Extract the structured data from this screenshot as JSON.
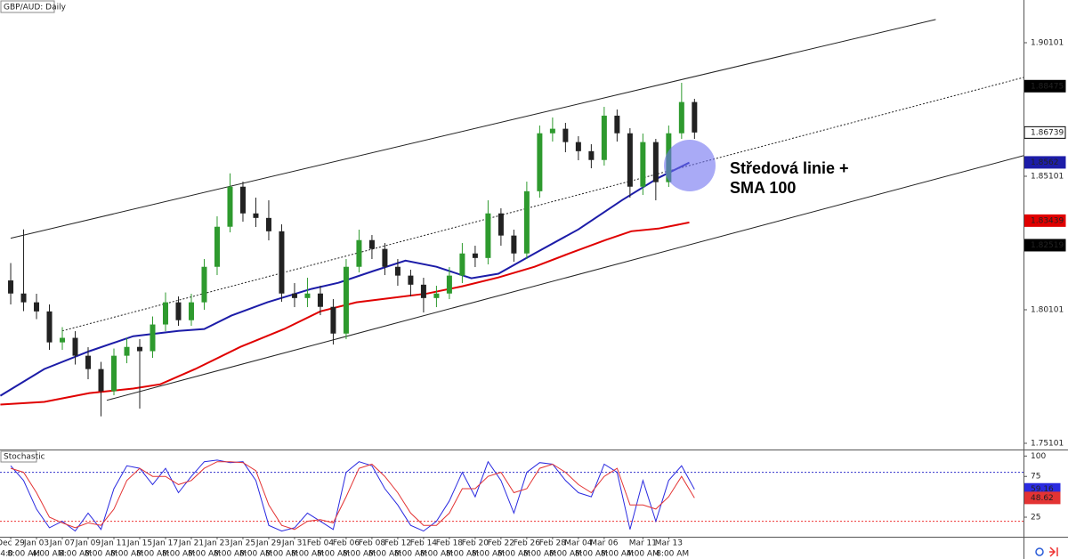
{
  "chart_data": [
    {
      "type": "candlestick",
      "title": "GBP/AUD: Daily",
      "xlim": [
        -0.83,
        78.5
      ],
      "ylim": [
        1.74868,
        1.91701
      ],
      "yticks": [
        1.75101,
        1.80101,
        1.85101,
        1.90101
      ],
      "xticks": [
        {
          "value": 0,
          "label": "Dec 29"
        },
        {
          "value": 2,
          "label": "Jan 03"
        },
        {
          "value": 4,
          "label": "Jan 07"
        },
        {
          "value": 6,
          "label": "Jan 09"
        },
        {
          "value": 8,
          "label": "Jan 11"
        },
        {
          "value": 10,
          "label": "Jan 15"
        },
        {
          "value": 12,
          "label": "Jan 17"
        },
        {
          "value": 14,
          "label": "Jan 21"
        },
        {
          "value": 16,
          "label": "Jan 23"
        },
        {
          "value": 18,
          "label": "Jan 25"
        },
        {
          "value": 20,
          "label": "Jan 29"
        },
        {
          "value": 22,
          "label": "Jan 31"
        },
        {
          "value": 24,
          "label": "Feb 04"
        },
        {
          "value": 26,
          "label": "Feb 06"
        },
        {
          "value": 28,
          "label": "Feb 08"
        },
        {
          "value": 30,
          "label": "Feb 12"
        },
        {
          "value": 32,
          "label": "Feb 14"
        },
        {
          "value": 34,
          "label": "Feb 18"
        },
        {
          "value": 36,
          "label": "Feb 20"
        },
        {
          "value": 38,
          "label": "Feb 22"
        },
        {
          "value": 40,
          "label": "Feb 26"
        },
        {
          "value": 42,
          "label": "Feb 28"
        },
        {
          "value": 44,
          "label": "Mar 04"
        },
        {
          "value": 46,
          "label": "Mar 06"
        },
        {
          "value": 49,
          "label": "Mar 11"
        },
        {
          "value": 51,
          "label": "Mar 13"
        }
      ],
      "time_ticks": [
        {
          "value": -0.8,
          "label": "4:0"
        },
        {
          "value": 1,
          "label": "8:00 AM"
        },
        {
          "value": 2.9,
          "label": "4:00 AM"
        },
        {
          "value": 5,
          "label": "8:00 AM"
        },
        {
          "value": 7,
          "label": "8:00 AM"
        },
        {
          "value": 9,
          "label": "8:00 AM"
        },
        {
          "value": 11,
          "label": "8:00 AM"
        },
        {
          "value": 13,
          "label": "8:00 AM"
        },
        {
          "value": 15,
          "label": "8:00 AM"
        },
        {
          "value": 17,
          "label": "8:00 AM"
        },
        {
          "value": 19,
          "label": "8:00 AM"
        },
        {
          "value": 21,
          "label": "8:00 AM"
        },
        {
          "value": 23,
          "label": "8:00 AM"
        },
        {
          "value": 25,
          "label": "8:00 AM"
        },
        {
          "value": 27,
          "label": "8:00 AM"
        },
        {
          "value": 29,
          "label": "8:00 AM"
        },
        {
          "value": 31,
          "label": "8:00 AM"
        },
        {
          "value": 33,
          "label": "8:00 AM"
        },
        {
          "value": 35,
          "label": "8:00 AM"
        },
        {
          "value": 37,
          "label": "8:00 AM"
        },
        {
          "value": 39,
          "label": "8:00 AM"
        },
        {
          "value": 41,
          "label": "8:00 AM"
        },
        {
          "value": 43,
          "label": "8:00 AM"
        },
        {
          "value": 45,
          "label": "8:00 AM"
        },
        {
          "value": 47,
          "label": "8:00 AM"
        },
        {
          "value": 49,
          "label": "4:00 AM"
        },
        {
          "value": 51.3,
          "label": "8:00 AM"
        }
      ],
      "up_color": "#2e9a2e",
      "down_color": "#222222",
      "x": [
        0,
        1,
        2,
        3,
        4,
        5,
        6,
        7,
        8,
        9,
        10,
        11,
        12,
        13,
        14,
        15,
        16,
        17,
        18,
        19,
        20,
        21,
        22,
        23,
        24,
        25,
        26,
        27,
        28,
        29,
        30,
        31,
        32,
        33,
        34,
        35,
        36,
        37,
        38,
        39,
        40,
        41,
        42,
        43,
        44,
        45,
        46,
        47,
        48,
        49,
        50,
        51,
        52,
        53
      ],
      "open": [
        1.812,
        1.8071,
        1.8038,
        1.8004,
        1.7888,
        1.7905,
        1.7838,
        1.7788,
        1.7705,
        1.7838,
        1.7871,
        1.7855,
        1.7955,
        1.8038,
        1.7971,
        1.8038,
        1.8171,
        1.8321,
        1.8471,
        1.8371,
        1.8354,
        1.8304,
        1.8071,
        1.8054,
        1.8071,
        1.8021,
        1.7921,
        1.8171,
        1.8271,
        1.8238,
        1.8171,
        1.8138,
        1.8104,
        1.8054,
        1.8071,
        1.8138,
        1.8221,
        1.8204,
        1.8371,
        1.8288,
        1.8221,
        1.8454,
        1.8671,
        1.8688,
        1.8638,
        1.8604,
        1.8571,
        1.8737,
        1.8671,
        1.8471,
        1.8638,
        1.8488,
        1.8671,
        1.8788
      ],
      "high": [
        1.8185,
        1.8311,
        1.807,
        1.803,
        1.7945,
        1.793,
        1.787,
        1.7815,
        1.7865,
        1.7905,
        1.79,
        1.7985,
        1.8075,
        1.806,
        1.807,
        1.82,
        1.836,
        1.8521,
        1.849,
        1.843,
        1.842,
        1.833,
        1.811,
        1.813,
        1.81,
        1.805,
        1.82,
        1.831,
        1.829,
        1.826,
        1.82,
        1.816,
        1.813,
        1.81,
        1.817,
        1.826,
        1.825,
        1.842,
        1.839,
        1.831,
        1.849,
        1.87,
        1.873,
        1.871,
        1.866,
        1.863,
        1.877,
        1.876,
        1.869,
        1.867,
        1.865,
        1.87,
        1.886,
        1.88
      ],
      "low": [
        1.803,
        1.8005,
        1.7975,
        1.786,
        1.786,
        1.7805,
        1.775,
        1.7611,
        1.769,
        1.781,
        1.764,
        1.783,
        1.793,
        1.795,
        1.795,
        1.801,
        1.814,
        1.83,
        1.834,
        1.832,
        1.827,
        1.804,
        1.802,
        1.802,
        1.799,
        1.788,
        1.79,
        1.815,
        1.82,
        1.814,
        1.81,
        1.806,
        1.8,
        1.802,
        1.805,
        1.811,
        1.817,
        1.818,
        1.825,
        1.819,
        1.82,
        1.843,
        1.864,
        1.86,
        1.857,
        1.854,
        1.855,
        1.864,
        1.843,
        1.844,
        1.842,
        1.847,
        1.865,
        1.865
      ],
      "close": [
        1.8071,
        1.8038,
        1.8004,
        1.7888,
        1.7905,
        1.7838,
        1.7788,
        1.7705,
        1.7838,
        1.7871,
        1.7855,
        1.7955,
        1.8038,
        1.7971,
        1.8038,
        1.8171,
        1.8321,
        1.8471,
        1.8371,
        1.8354,
        1.8304,
        1.8071,
        1.8054,
        1.8071,
        1.8021,
        1.7921,
        1.8171,
        1.8271,
        1.8238,
        1.8171,
        1.8138,
        1.8104,
        1.8054,
        1.8071,
        1.8138,
        1.8221,
        1.8204,
        1.8371,
        1.8288,
        1.8221,
        1.8454,
        1.8671,
        1.8688,
        1.8638,
        1.8604,
        1.8571,
        1.8737,
        1.8671,
        1.8471,
        1.8638,
        1.8488,
        1.8671,
        1.8788,
        1.8674
      ],
      "overlays": [
        {
          "color": "#1c1ca8",
          "x": [
            -0.8,
            2.6,
            6.1,
            9.5,
            13,
            15,
            17.1,
            19.9,
            23.3,
            25.4,
            28.1,
            30.6,
            33,
            35.7,
            37.8,
            40.6,
            44,
            47.4,
            50.2,
            52.6
          ],
          "values": [
            1.7688,
            1.7788,
            1.7855,
            1.7911,
            1.7931,
            1.7938,
            1.7988,
            1.8038,
            1.8088,
            1.8111,
            1.8155,
            1.8194,
            1.8171,
            1.8128,
            1.8145,
            1.8221,
            1.8311,
            1.8421,
            1.8504,
            1.8561
          ]
        },
        {
          "color": "#e00000",
          "x": [
            -0.8,
            2.6,
            6.1,
            9.5,
            11.6,
            14.3,
            17.8,
            21.2,
            24,
            26.8,
            29.5,
            32.3,
            35,
            37.8,
            40.6,
            43.3,
            46.1,
            48.1,
            50.2,
            52.6
          ],
          "values": [
            1.7655,
            1.7665,
            1.7698,
            1.7715,
            1.7731,
            1.7788,
            1.7871,
            1.7938,
            1.8004,
            1.8038,
            1.8054,
            1.8071,
            1.8098,
            1.8131,
            1.8171,
            1.8221,
            1.8271,
            1.8304,
            1.8314,
            1.8337
          ]
        }
      ],
      "trendlines": [
        {
          "x": [
            0,
            71.7
          ],
          "values": [
            1.8278,
            1.9097
          ],
          "dashed": false
        },
        {
          "x": [
            7.45,
            78.5
          ],
          "values": [
            1.7671,
            1.8587
          ],
          "dashed": false
        },
        {
          "x": [
            4,
            78.5
          ],
          "values": [
            1.7931,
            1.888
          ],
          "dashed": true
        }
      ],
      "price_tags": [
        {
          "value": 1.88475,
          "color": "#000000",
          "text_color": "#ffffff"
        },
        {
          "value": 1.86739,
          "color": "#ffffff",
          "text_color": "#000000"
        },
        {
          "value": 1.8562,
          "color": "#1c1ca8",
          "text_color": "#ffffff"
        },
        {
          "value": 1.83439,
          "color": "#e00000",
          "text_color": "#ffffff"
        },
        {
          "value": 1.82519,
          "color": "#000000",
          "text_color": "#ffffff"
        }
      ],
      "annotation": [
        "Středová linie +",
        "SMA 100"
      ]
    },
    {
      "type": "stochastic",
      "title": "Stochastic",
      "xlim": [
        -0.83,
        78.5
      ],
      "ylim": [
        1,
        108
      ],
      "yticks": [
        25,
        75,
        100
      ],
      "levels": [
        80,
        20
      ],
      "x": [
        0,
        1,
        2,
        3,
        4,
        5,
        6,
        7,
        8,
        9,
        10,
        11,
        12,
        13,
        14,
        15,
        16,
        17,
        18,
        19,
        20,
        21,
        22,
        23,
        24,
        25,
        26,
        27,
        28,
        29,
        30,
        31,
        32,
        33,
        34,
        35,
        36,
        37,
        38,
        39,
        40,
        41,
        42,
        43,
        44,
        45,
        46,
        47,
        48,
        49,
        50,
        51,
        52,
        53
      ],
      "series": [
        {
          "color": "#2a2ae0",
          "values": [
            88,
            70,
            35,
            12,
            20,
            8,
            30,
            10,
            60,
            88,
            85,
            65,
            85,
            55,
            75,
            93,
            95,
            92,
            93,
            70,
            15,
            8,
            12,
            30,
            20,
            10,
            80,
            93,
            88,
            60,
            40,
            15,
            8,
            20,
            45,
            80,
            50,
            93,
            70,
            30,
            80,
            92,
            90,
            70,
            55,
            50,
            90,
            80,
            10,
            70,
            20,
            70,
            88,
            59.16
          ]
        },
        {
          "color": "#e33333",
          "values": [
            85,
            80,
            55,
            25,
            18,
            12,
            18,
            15,
            35,
            70,
            85,
            75,
            75,
            65,
            70,
            85,
            93,
            93,
            92,
            82,
            40,
            15,
            10,
            20,
            22,
            18,
            50,
            85,
            90,
            75,
            55,
            30,
            15,
            15,
            30,
            60,
            60,
            75,
            80,
            55,
            60,
            85,
            90,
            80,
            65,
            55,
            75,
            85,
            40,
            40,
            35,
            50,
            75,
            48.62
          ]
        }
      ],
      "tags": [
        {
          "value": 59.16,
          "color": "#2a2ae0"
        },
        {
          "value": 48.62,
          "color": "#e33333"
        }
      ]
    }
  ]
}
